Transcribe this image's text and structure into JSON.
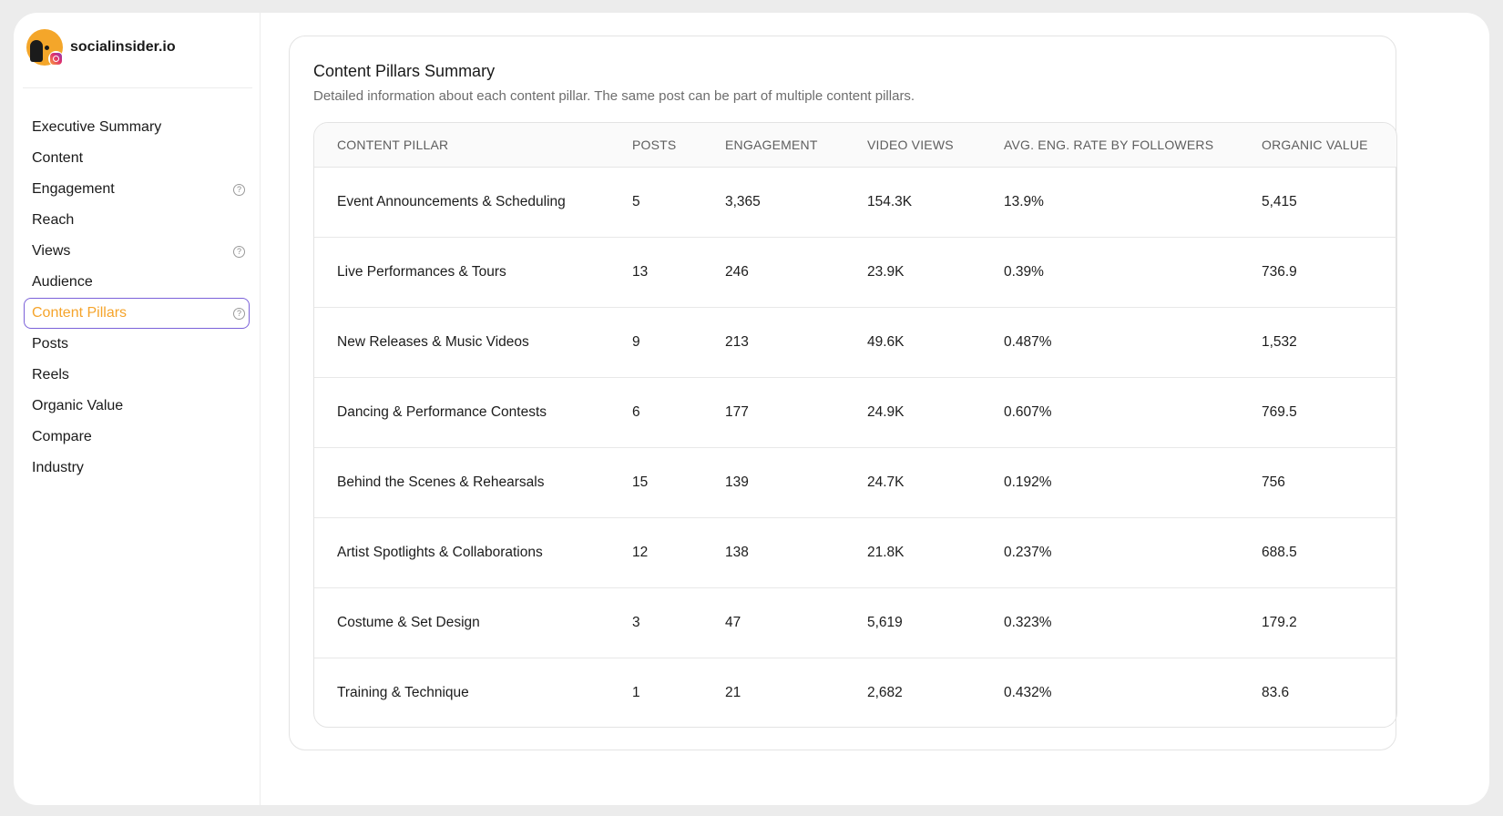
{
  "brand": {
    "name": "socialinsider.io",
    "avatar_icon": "profile-avatar",
    "platform_icon": "instagram-icon"
  },
  "sidebar": {
    "items": [
      {
        "label": "Executive Summary",
        "help": false,
        "active": false
      },
      {
        "label": "Content",
        "help": false,
        "active": false
      },
      {
        "label": "Engagement",
        "help": true,
        "active": false
      },
      {
        "label": "Reach",
        "help": false,
        "active": false
      },
      {
        "label": "Views",
        "help": true,
        "active": false
      },
      {
        "label": "Audience",
        "help": false,
        "active": false
      },
      {
        "label": "Content Pillars",
        "help": true,
        "active": true
      },
      {
        "label": "Posts",
        "help": false,
        "active": false
      },
      {
        "label": "Reels",
        "help": false,
        "active": false
      },
      {
        "label": "Organic Value",
        "help": false,
        "active": false
      },
      {
        "label": "Compare",
        "help": false,
        "active": false
      },
      {
        "label": "Industry",
        "help": false,
        "active": false
      }
    ],
    "help_glyph": "?",
    "active_color": "#f5a42b",
    "active_border_color": "#7b61d9"
  },
  "main": {
    "title": "Content Pillars Summary",
    "subtitle": "Detailed information about each content pillar. The same post can be part of multiple content pillars.",
    "table": {
      "columns": [
        "CONTENT PILLAR",
        "POSTS",
        "ENGAGEMENT",
        "VIDEO VIEWS",
        "AVG. ENG. RATE BY FOLLOWERS",
        "ORGANIC VALUE"
      ],
      "rows": [
        [
          "Event Announcements & Scheduling",
          "5",
          "3,365",
          "154.3K",
          "13.9%",
          "5,415"
        ],
        [
          "Live Performances & Tours",
          "13",
          "246",
          "23.9K",
          "0.39%",
          "736.9"
        ],
        [
          "New Releases & Music Videos",
          "9",
          "213",
          "49.6K",
          "0.487%",
          "1,532"
        ],
        [
          "Dancing & Performance Contests",
          "6",
          "177",
          "24.9K",
          "0.607%",
          "769.5"
        ],
        [
          "Behind the Scenes & Rehearsals",
          "15",
          "139",
          "24.7K",
          "0.192%",
          "756"
        ],
        [
          "Artist Spotlights & Collaborations",
          "12",
          "138",
          "21.8K",
          "0.237%",
          "688.5"
        ],
        [
          "Costume & Set Design",
          "3",
          "47",
          "5,619",
          "0.323%",
          "179.2"
        ],
        [
          "Training & Technique",
          "1",
          "21",
          "2,682",
          "0.432%",
          "83.6"
        ]
      ]
    }
  }
}
